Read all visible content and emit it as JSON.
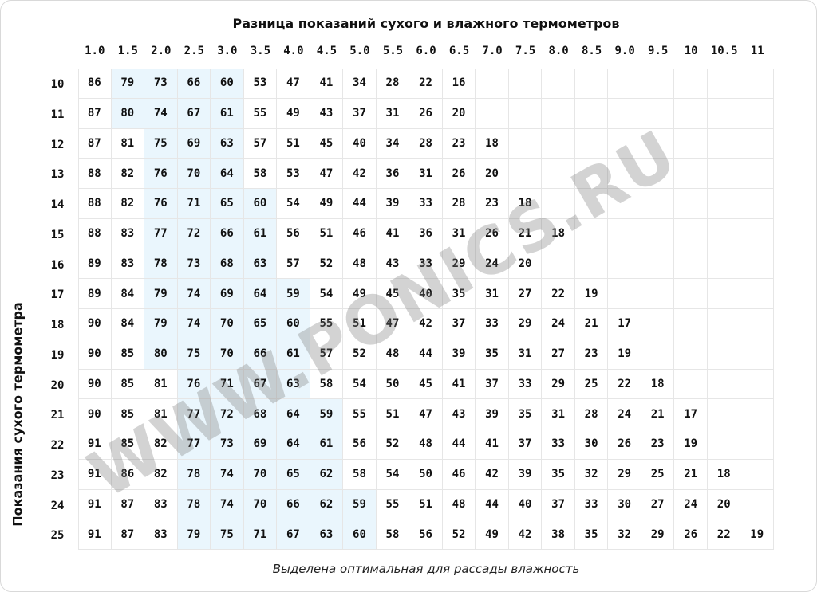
{
  "title": "Разница показаний сухого и влажного термометров",
  "row_axis_label": "Показания сухого термометра",
  "footer_note": "Выделена оптимальная для рассады влажность",
  "watermark": "WWW.PONICS.RU",
  "colors": {
    "optimal_highlight": "#eaf6fd",
    "grid_line": "#e6e6e6"
  },
  "table": {
    "columns": [
      "1.0",
      "1.5",
      "2.0",
      "2.5",
      "3.0",
      "3.5",
      "4.0",
      "4.5",
      "5.0",
      "5.5",
      "6.0",
      "6.5",
      "7.0",
      "7.5",
      "8.0",
      "8.5",
      "9.0",
      "9.5",
      "10",
      "10.5",
      "11"
    ],
    "rows": [
      {
        "label": "10",
        "values": [
          "86",
          "79",
          "73",
          "66",
          "60",
          "53",
          "47",
          "41",
          "34",
          "28",
          "22",
          "16"
        ],
        "optimal": [
          1,
          4
        ]
      },
      {
        "label": "11",
        "values": [
          "87",
          "80",
          "74",
          "67",
          "61",
          "55",
          "49",
          "43",
          "37",
          "31",
          "26",
          "20"
        ],
        "optimal": [
          1,
          4
        ]
      },
      {
        "label": "12",
        "values": [
          "87",
          "81",
          "75",
          "69",
          "63",
          "57",
          "51",
          "45",
          "40",
          "34",
          "28",
          "23",
          "18"
        ],
        "optimal": [
          2,
          4
        ]
      },
      {
        "label": "13",
        "values": [
          "88",
          "82",
          "76",
          "70",
          "64",
          "58",
          "53",
          "47",
          "42",
          "36",
          "31",
          "26",
          "20"
        ],
        "optimal": [
          2,
          4
        ]
      },
      {
        "label": "14",
        "values": [
          "88",
          "82",
          "76",
          "71",
          "65",
          "60",
          "54",
          "49",
          "44",
          "39",
          "33",
          "28",
          "23",
          "18"
        ],
        "optimal": [
          2,
          5
        ]
      },
      {
        "label": "15",
        "values": [
          "88",
          "83",
          "77",
          "72",
          "66",
          "61",
          "56",
          "51",
          "46",
          "41",
          "36",
          "31",
          "26",
          "21",
          "18"
        ],
        "optimal": [
          2,
          5
        ]
      },
      {
        "label": "16",
        "values": [
          "89",
          "83",
          "78",
          "73",
          "68",
          "63",
          "57",
          "52",
          "48",
          "43",
          "33",
          "29",
          "24",
          "20"
        ],
        "optimal": [
          2,
          5
        ]
      },
      {
        "label": "17",
        "values": [
          "89",
          "84",
          "79",
          "74",
          "69",
          "64",
          "59",
          "54",
          "49",
          "45",
          "40",
          "35",
          "31",
          "27",
          "22",
          "19"
        ],
        "optimal": [
          2,
          6
        ]
      },
      {
        "label": "18",
        "values": [
          "90",
          "84",
          "79",
          "74",
          "70",
          "65",
          "60",
          "55",
          "51",
          "47",
          "42",
          "37",
          "33",
          "29",
          "24",
          "21",
          "17"
        ],
        "optimal": [
          2,
          6
        ]
      },
      {
        "label": "19",
        "values": [
          "90",
          "85",
          "80",
          "75",
          "70",
          "66",
          "61",
          "57",
          "52",
          "48",
          "44",
          "39",
          "35",
          "31",
          "27",
          "23",
          "19"
        ],
        "optimal": [
          2,
          6
        ]
      },
      {
        "label": "20",
        "values": [
          "90",
          "85",
          "81",
          "76",
          "71",
          "67",
          "63",
          "58",
          "54",
          "50",
          "45",
          "41",
          "37",
          "33",
          "29",
          "25",
          "22",
          "18"
        ],
        "optimal": [
          3,
          6
        ]
      },
      {
        "label": "21",
        "values": [
          "90",
          "85",
          "81",
          "77",
          "72",
          "68",
          "64",
          "59",
          "55",
          "51",
          "47",
          "43",
          "39",
          "35",
          "31",
          "28",
          "24",
          "21",
          "17"
        ],
        "optimal": [
          3,
          7
        ]
      },
      {
        "label": "22",
        "values": [
          "91",
          "85",
          "82",
          "77",
          "73",
          "69",
          "64",
          "61",
          "56",
          "52",
          "48",
          "44",
          "41",
          "37",
          "33",
          "30",
          "26",
          "23",
          "19"
        ],
        "optimal": [
          3,
          7
        ]
      },
      {
        "label": "23",
        "values": [
          "91",
          "86",
          "82",
          "78",
          "74",
          "70",
          "65",
          "62",
          "58",
          "54",
          "50",
          "46",
          "42",
          "39",
          "35",
          "32",
          "29",
          "25",
          "21",
          "18"
        ],
        "optimal": [
          3,
          7
        ]
      },
      {
        "label": "24",
        "values": [
          "91",
          "87",
          "83",
          "78",
          "74",
          "70",
          "66",
          "62",
          "59",
          "55",
          "51",
          "48",
          "44",
          "40",
          "37",
          "33",
          "30",
          "27",
          "24",
          "20"
        ],
        "optimal": [
          3,
          8
        ]
      },
      {
        "label": "25",
        "values": [
          "91",
          "87",
          "83",
          "79",
          "75",
          "71",
          "67",
          "63",
          "60",
          "58",
          "56",
          "52",
          "49",
          "42",
          "38",
          "35",
          "32",
          "29",
          "26",
          "22",
          "19"
        ],
        "optimal": [
          3,
          8
        ]
      }
    ]
  }
}
